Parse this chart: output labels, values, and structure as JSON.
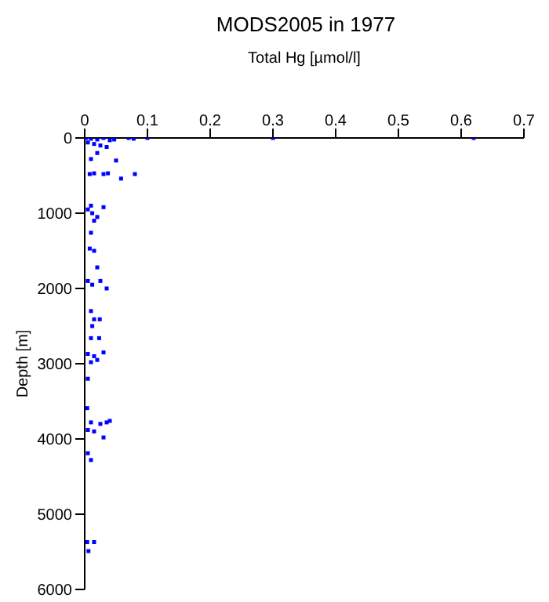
{
  "chart_data": {
    "type": "scatter",
    "title": "MODS2005 in 1977",
    "xlabel": "Total Hg [µmol/l]",
    "ylabel": "Depth [m]",
    "x": [
      0.002,
      0.01,
      0.02,
      0.03,
      0.04,
      0.047,
      0.07,
      0.078,
      0.1,
      0.3,
      0.62,
      0.005,
      0.015,
      0.025,
      0.035,
      0.01,
      0.02,
      0.05,
      0.008,
      0.015,
      0.03,
      0.037,
      0.08,
      0.058,
      0.01,
      0.005,
      0.012,
      0.02,
      0.03,
      0.015,
      0.01,
      0.008,
      0.015,
      0.02,
      0.005,
      0.012,
      0.025,
      0.035,
      0.01,
      0.015,
      0.012,
      0.024,
      0.01,
      0.023,
      0.005,
      0.015,
      0.03,
      0.01,
      0.02,
      0.005,
      0.004,
      0.01,
      0.025,
      0.035,
      0.04,
      0.005,
      0.015,
      0.03,
      0.005,
      0.01,
      0.004,
      0.015,
      0.006
    ],
    "values": [
      0,
      10,
      20,
      0,
      30,
      20,
      0,
      10,
      0,
      0,
      0,
      60,
      80,
      100,
      120,
      280,
      200,
      300,
      480,
      470,
      480,
      470,
      480,
      540,
      900,
      950,
      1000,
      1050,
      920,
      1100,
      1260,
      1470,
      1500,
      1720,
      1900,
      1950,
      1900,
      2000,
      2300,
      2410,
      2500,
      2410,
      2660,
      2660,
      2870,
      2900,
      2850,
      2980,
      2950,
      3200,
      3590,
      3780,
      3800,
      3780,
      3760,
      3880,
      3900,
      3980,
      4190,
      4280,
      5370,
      5370,
      5490
    ],
    "color": "#0000ff",
    "marker": "square",
    "xlim": [
      0,
      0.7
    ],
    "xticks": [
      0,
      0.1,
      0.2,
      0.3,
      0.4,
      0.5,
      0.6,
      0.7
    ],
    "ylim": [
      6000,
      0
    ],
    "yticks": [
      0,
      1000,
      2000,
      3000,
      4000,
      5000,
      6000
    ],
    "grid": false
  }
}
